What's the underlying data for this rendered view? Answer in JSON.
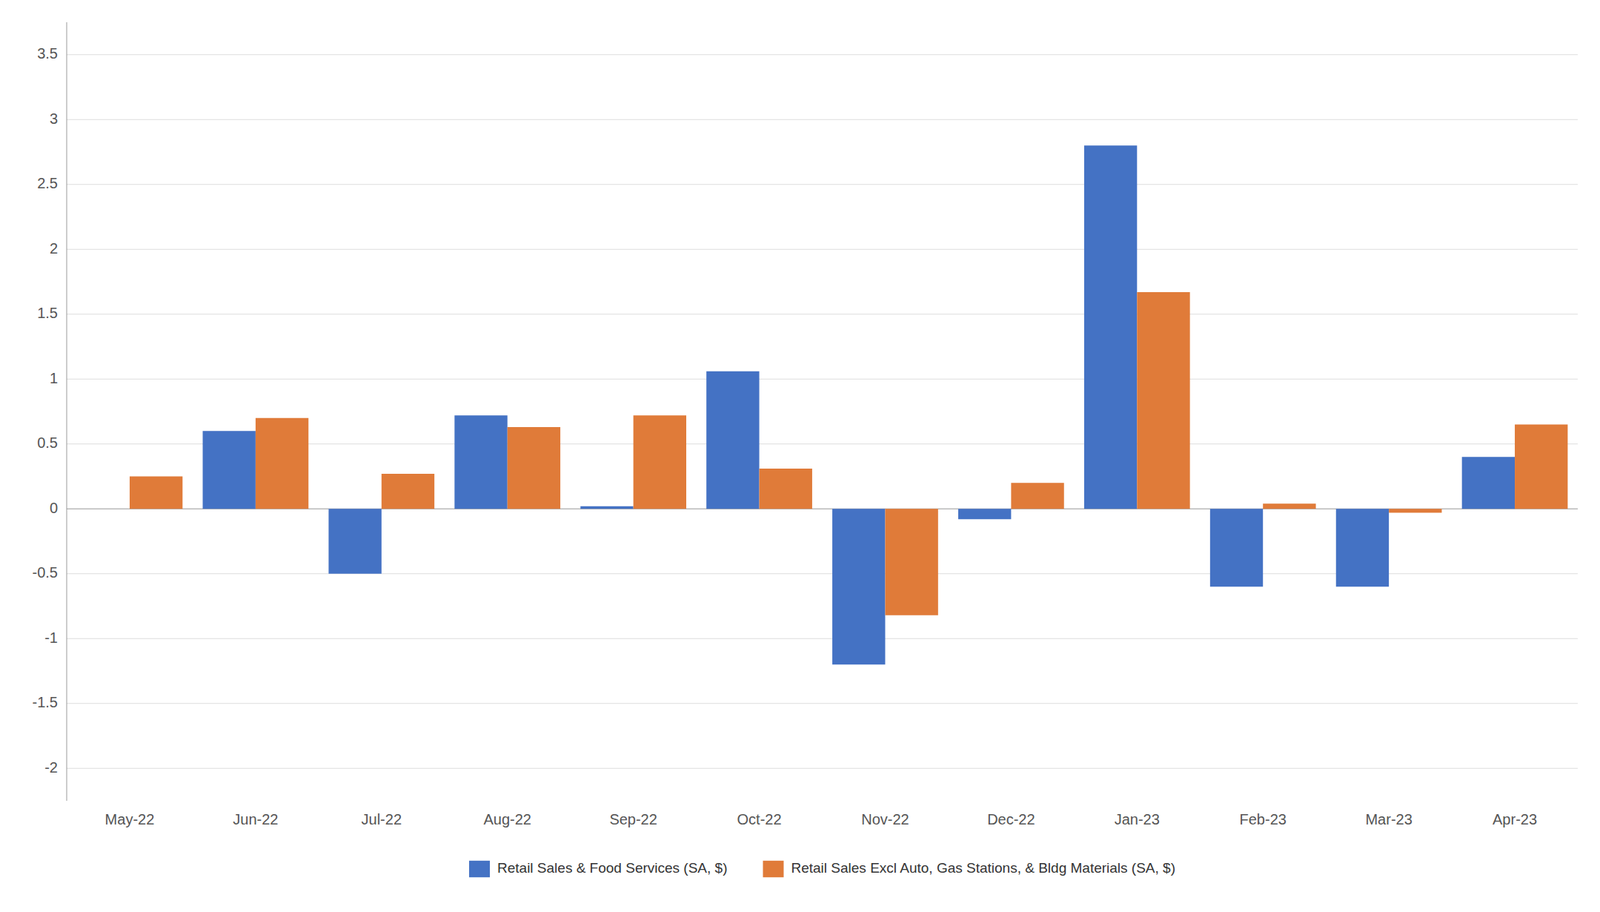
{
  "chart_data": {
    "type": "bar",
    "categories": [
      "May-22",
      "Jun-22",
      "Jul-22",
      "Aug-22",
      "Sep-22",
      "Oct-22",
      "Nov-22",
      "Dec-22",
      "Jan-23",
      "Feb-23",
      "Mar-23",
      "Apr-23"
    ],
    "series": [
      {
        "name": "Retail Sales & Food Services (SA, $)",
        "color": "#4472C4",
        "values": [
          0.0,
          0.6,
          -0.5,
          0.72,
          0.02,
          1.06,
          -1.2,
          -0.08,
          2.8,
          -0.6,
          -0.6,
          0.4
        ]
      },
      {
        "name": "Retail Sales Excl Auto, Gas Stations, & Bldg Materials (SA, $)",
        "color": "#E07B39",
        "values": [
          0.25,
          0.7,
          0.27,
          0.63,
          0.72,
          0.31,
          -0.82,
          0.2,
          1.67,
          0.04,
          -0.03,
          0.65
        ]
      }
    ],
    "ylim": [
      -2.25,
      3.75
    ],
    "yticks": [
      -2,
      -1.5,
      -1,
      -0.5,
      0,
      0.5,
      1,
      1.5,
      2,
      2.5,
      3,
      3.5
    ],
    "grid": true,
    "legend": "bottom"
  }
}
